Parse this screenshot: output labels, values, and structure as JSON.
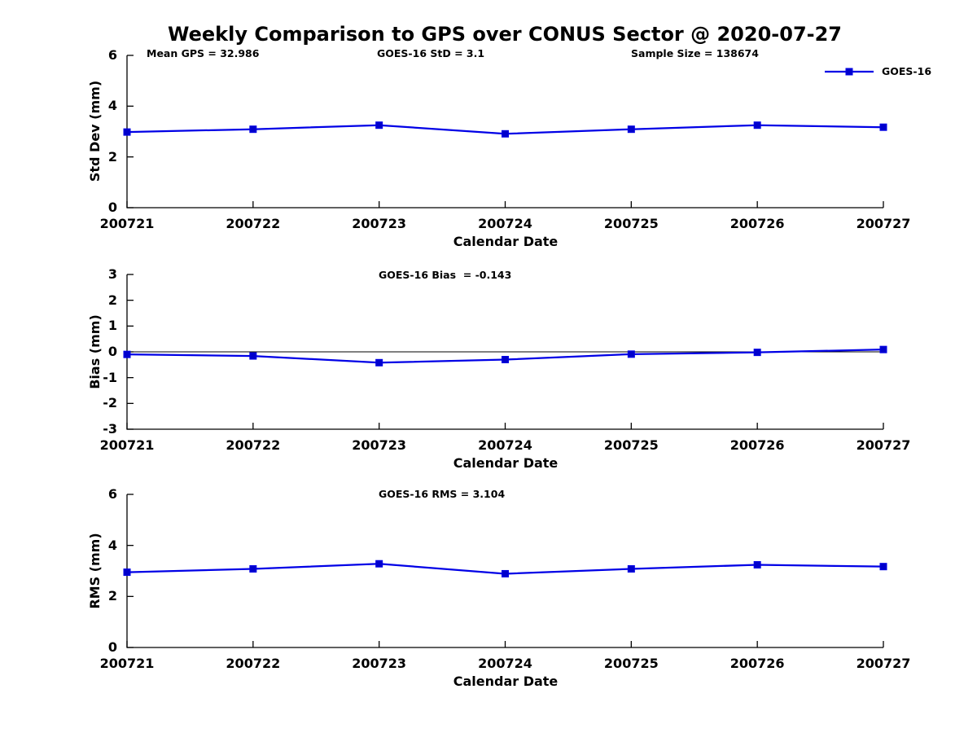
{
  "figure_title": "Weekly Comparison to GPS over CONUS Sector @ 2020-07-27",
  "legend": {
    "label": "GOES-16"
  },
  "colors": {
    "line": "#0000E6",
    "marker_fill": "#0000CC",
    "axis": "#000000",
    "text": "#000000"
  },
  "chart_data": [
    {
      "type": "line",
      "title": "Weekly Comparison to GPS over CONUS Sector @ 2020-07-27",
      "x": [
        "200721",
        "200722",
        "200723",
        "200724",
        "200725",
        "200726",
        "200727"
      ],
      "series": [
        {
          "name": "GOES-16",
          "values": [
            2.98,
            3.09,
            3.25,
            2.91,
            3.09,
            3.25,
            3.17
          ]
        }
      ],
      "xlabel": "Calendar Date",
      "ylabel": "Std Dev (mm)",
      "ylim": [
        0,
        6
      ],
      "yticks": [
        0,
        2,
        4,
        6
      ],
      "zero_line": false,
      "grid": false,
      "legend_position": "outside-top-right",
      "annotations": [
        {
          "text": "Mean GPS = 32.986"
        },
        {
          "text": "GOES-16 StD = 3.1"
        },
        {
          "text": "Sample Size = 138674"
        }
      ]
    },
    {
      "type": "line",
      "x": [
        "200721",
        "200722",
        "200723",
        "200724",
        "200725",
        "200726",
        "200727"
      ],
      "series": [
        {
          "name": "GOES-16",
          "values": [
            -0.1,
            -0.16,
            -0.42,
            -0.3,
            -0.09,
            -0.02,
            0.09
          ]
        }
      ],
      "xlabel": "Calendar Date",
      "ylabel": "Bias (mm)",
      "ylim": [
        -3,
        3
      ],
      "yticks": [
        3,
        2,
        1,
        0,
        -1,
        -2,
        -3
      ],
      "zero_line": true,
      "grid": false,
      "annotations": [
        {
          "text": "GOES-16 Bias  = -0.143"
        }
      ]
    },
    {
      "type": "line",
      "x": [
        "200721",
        "200722",
        "200723",
        "200724",
        "200725",
        "200726",
        "200727"
      ],
      "series": [
        {
          "name": "GOES-16",
          "values": [
            2.95,
            3.08,
            3.28,
            2.89,
            3.08,
            3.24,
            3.17
          ]
        }
      ],
      "xlabel": "Calendar Date",
      "ylabel": "RMS (mm)",
      "ylim": [
        0,
        6
      ],
      "yticks": [
        0,
        2,
        4,
        6
      ],
      "zero_line": false,
      "grid": false,
      "annotations": [
        {
          "text": "GOES-16 RMS = 3.104"
        }
      ]
    }
  ]
}
